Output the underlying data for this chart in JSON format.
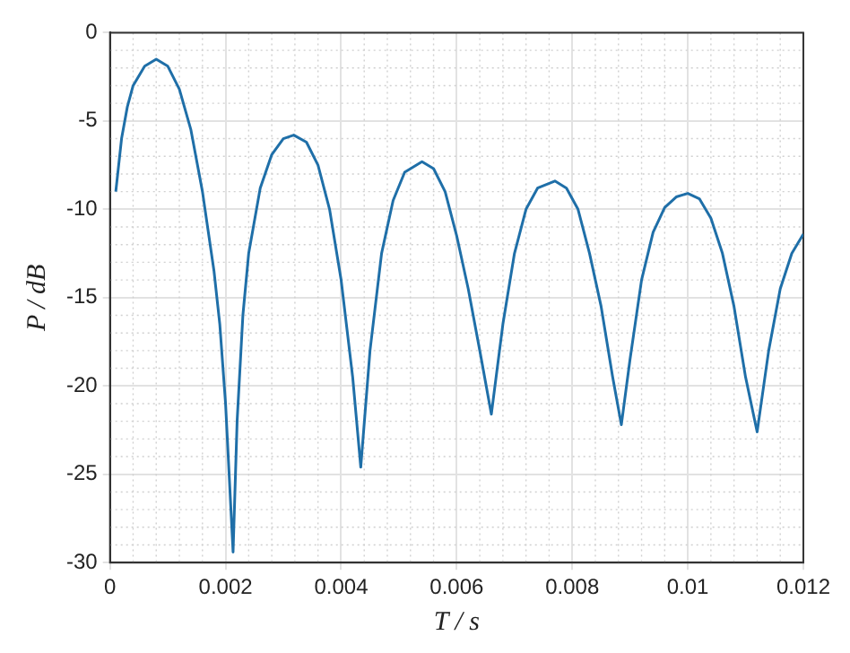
{
  "chart_data": {
    "type": "line",
    "xlabel": "T / s",
    "ylabel": "P / dB",
    "xlim": [
      0,
      0.012
    ],
    "xticks": [
      0,
      0.002,
      0.004,
      0.006,
      0.008,
      0.01,
      0.012
    ],
    "ylim": [
      -30,
      0
    ],
    "yticks": [
      -30,
      -25,
      -20,
      -15,
      -10,
      -5,
      0
    ],
    "grid": true,
    "marker": "none",
    "line_style": "solid",
    "series": [
      {
        "color": "#1f6fa8",
        "x": [
          0.0001,
          0.0002,
          0.0003,
          0.0004,
          0.0006,
          0.0008,
          0.001,
          0.0012,
          0.0014,
          0.0016,
          0.0018,
          0.0019,
          0.002,
          0.00213,
          0.0022,
          0.0023,
          0.0024,
          0.0026,
          0.0028,
          0.003,
          0.00318,
          0.0034,
          0.0036,
          0.0038,
          0.004,
          0.0042,
          0.00434,
          0.0045,
          0.0047,
          0.0049,
          0.0051,
          0.0054,
          0.0056,
          0.0058,
          0.006,
          0.0062,
          0.0064,
          0.0066,
          0.0068,
          0.007,
          0.0072,
          0.0074,
          0.0077,
          0.0079,
          0.0081,
          0.0083,
          0.0085,
          0.0087,
          0.00885,
          0.009,
          0.0092,
          0.0094,
          0.0096,
          0.0098,
          0.01,
          0.0102,
          0.0104,
          0.0106,
          0.0108,
          0.011,
          0.0112,
          0.0114,
          0.0116,
          0.0118,
          0.012
        ],
        "values": [
          -9,
          -6,
          -4.2,
          -3,
          -1.9,
          -1.5,
          -1.9,
          -3.2,
          -5.5,
          -9,
          -13.5,
          -16.5,
          -21,
          -29.4,
          -22,
          -16,
          -12.5,
          -8.8,
          -6.9,
          -6,
          -5.8,
          -6.2,
          -7.5,
          -10,
          -14,
          -19.5,
          -24.6,
          -18,
          -12.5,
          -9.5,
          -7.9,
          -7.3,
          -7.7,
          -9,
          -11.5,
          -14.5,
          -18,
          -21.6,
          -16.5,
          -12.5,
          -10,
          -8.8,
          -8.4,
          -8.8,
          -10,
          -12.5,
          -15.5,
          -19.5,
          -22.2,
          -18.5,
          -14,
          -11.3,
          -9.9,
          -9.3,
          -9.1,
          -9.4,
          -10.5,
          -12.5,
          -15.5,
          -19.5,
          -22.6,
          -18,
          -14.5,
          -12.5,
          -11.4
        ]
      }
    ]
  }
}
